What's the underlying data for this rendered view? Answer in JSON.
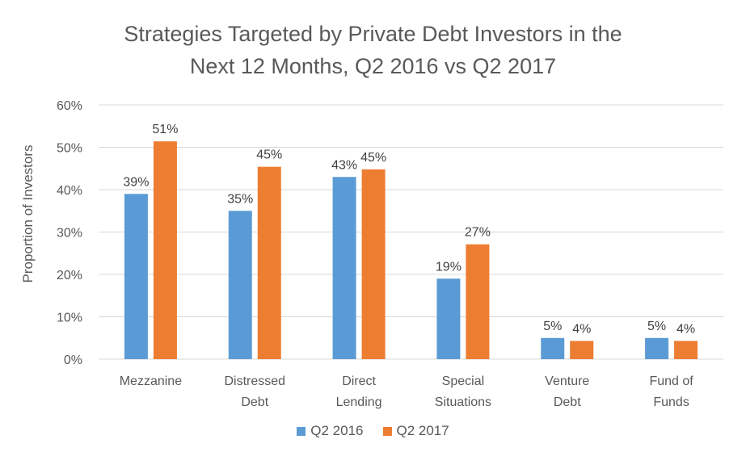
{
  "title_lines": [
    "Strategies Targeted by Private Debt Investors in the",
    "Next 12 Months, Q2 2016 vs Q2 2017"
  ],
  "chart_data": {
    "type": "bar",
    "title": "Strategies Targeted by Private Debt Investors in the Next 12 Months, Q2 2016 vs Q2 2017",
    "xlabel": "",
    "ylabel": "Proportion of Investors",
    "ylim": [
      0,
      60
    ],
    "yticks": [
      0,
      10,
      20,
      30,
      40,
      50,
      60
    ],
    "ytick_labels": [
      "0%",
      "10%",
      "20%",
      "30%",
      "40%",
      "50%",
      "60%"
    ],
    "categories": [
      [
        "Mezzanine"
      ],
      [
        "Distressed",
        "Debt"
      ],
      [
        "Direct",
        "Lending"
      ],
      [
        "Special",
        "Situations"
      ],
      [
        "Venture",
        "Debt"
      ],
      [
        "Fund of",
        "Funds"
      ]
    ],
    "series": [
      {
        "name": "Q2 2016",
        "color": "#5B9BD5",
        "values": [
          39,
          35,
          43,
          19,
          5,
          5
        ],
        "labels": [
          "39%",
          "35%",
          "43%",
          "19%",
          "5%",
          "5%"
        ]
      },
      {
        "name": "Q2 2017",
        "color": "#ED7D31",
        "values": [
          51.4,
          45.4,
          44.8,
          27.1,
          4.3,
          4.3
        ],
        "labels": [
          "51%",
          "45%",
          "45%",
          "27%",
          "4%",
          "4%"
        ]
      }
    ],
    "grid": true,
    "legend_position": "bottom"
  }
}
